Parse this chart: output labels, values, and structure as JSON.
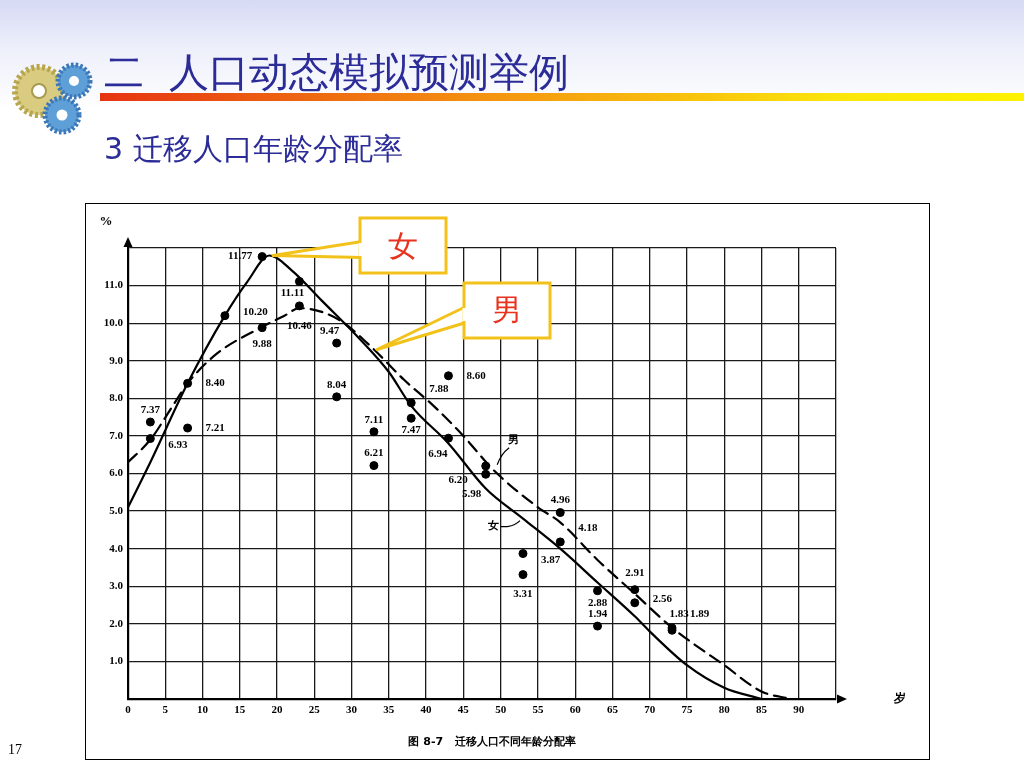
{
  "chart_data": {
    "type": "line",
    "title": "二  人口动态模拟预测举例",
    "subtitle": "3 迁移人口年龄分配率",
    "xlabel": "岁",
    "ylabel": "%",
    "annotations": [
      "图 8-7   迁移人口不同年龄分配率",
      "17"
    ],
    "xlim": [
      0,
      95
    ],
    "xticks": [
      0,
      5,
      10,
      15,
      20,
      25,
      30,
      35,
      40,
      45,
      50,
      55,
      60,
      65,
      70,
      75,
      80,
      85,
      90,
      {
        "value": 95,
        "label": null
      }
    ],
    "ylim": [
      0,
      12
    ],
    "yticks": [
      {
        "value": 1,
        "label": "1.0"
      },
      {
        "value": 2,
        "label": "2.0"
      },
      {
        "value": 3,
        "label": "3.0"
      },
      {
        "value": 4,
        "label": "4.0"
      },
      {
        "value": 5,
        "label": "5.0"
      },
      {
        "value": 6,
        "label": "6.0"
      },
      {
        "value": 7,
        "label": "7.0"
      },
      {
        "value": 8,
        "label": "8.0"
      },
      {
        "value": 9,
        "label": "9.0"
      },
      {
        "value": 10,
        "label": "10.0"
      },
      {
        "value": 11,
        "label": "11.0"
      },
      {
        "value": 12,
        "label": null
      }
    ],
    "grid": true,
    "legend": false,
    "series": [
      {
        "name": "女",
        "type": "line",
        "color": "#000000",
        "line_style": "solid",
        "marker": "none",
        "x": [
          0,
          3,
          8,
          13,
          16,
          19,
          22,
          26,
          31,
          35,
          38,
          43,
          48,
          53,
          58,
          63,
          68,
          70,
          75,
          80,
          85
        ],
        "values": [
          5.1,
          6.3,
          8.4,
          10.2,
          11.1,
          11.8,
          11.4,
          10.6,
          9.6,
          8.7,
          7.8,
          6.8,
          5.6,
          4.8,
          4.0,
          3.1,
          2.2,
          1.8,
          0.9,
          0.3,
          0
        ]
      },
      {
        "name": "男",
        "color": "#000000",
        "line_style": "dashed",
        "marker": "none",
        "x": [
          0,
          3,
          6,
          8,
          12,
          18,
          21,
          23,
          26,
          29,
          33,
          37,
          41,
          45,
          49,
          55,
          58,
          63,
          68,
          73,
          80,
          85,
          89
        ],
        "values": [
          6.3,
          6.9,
          7.8,
          8.4,
          9.2,
          9.9,
          10.2,
          10.4,
          10.3,
          10.0,
          9.3,
          8.5,
          7.8,
          7.0,
          6.1,
          5.1,
          4.7,
          3.7,
          2.8,
          1.9,
          0.9,
          0.2,
          0
        ]
      },
      {
        "type": "scatter",
        "color": "#000000",
        "marker": "circle",
        "x": [
          3,
          3,
          8,
          8,
          13,
          18,
          18,
          23,
          23,
          28,
          28,
          33,
          33,
          38,
          38,
          43,
          43,
          48,
          48,
          53,
          53,
          58,
          58,
          63,
          63,
          68,
          68,
          73,
          73
        ],
        "values": [
          7.37,
          6.93,
          8.4,
          7.21,
          10.2,
          11.77,
          9.88,
          11.11,
          10.46,
          9.47,
          8.04,
          7.11,
          6.21,
          7.88,
          7.47,
          8.6,
          6.94,
          6.2,
          5.98,
          3.87,
          3.31,
          4.96,
          4.18,
          2.88,
          1.94,
          2.91,
          2.56,
          1.89,
          1.83
        ],
        "value_labels": [
          "7.37",
          "6.93",
          "8.40",
          "7.21",
          "10.20",
          "11.77",
          "9.88",
          "11.11",
          "10.46",
          "9.47",
          "8.04",
          "7.11",
          "6.21",
          "7.88",
          "7.47",
          "8.60",
          "6.94",
          "6.20",
          "5.98",
          "3.87",
          "3.31",
          "4.96",
          "4.18",
          "2.88",
          "1.94",
          "2.91",
          "2.56",
          "1.89",
          "1.83"
        ]
      }
    ]
  }
}
